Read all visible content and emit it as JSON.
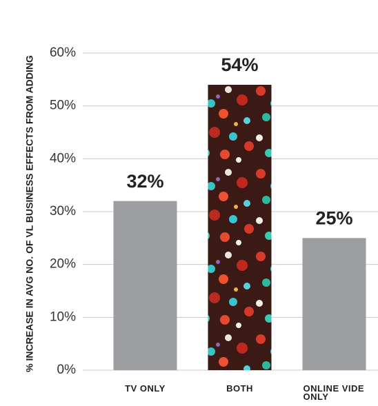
{
  "chart_data": {
    "type": "bar",
    "y_label": "% INCREASE IN AVG NO. OF VL BUSINESS EFFECTS FROM ADDING",
    "categories": [
      "TV ONLY",
      "BOTH",
      "ONLINE VIDE ONLY"
    ],
    "values": [
      32,
      54,
      25
    ],
    "value_labels": [
      "32%",
      "54%",
      "25%"
    ],
    "colors": [
      "#9d9ea2",
      "#3b1a16",
      "#9d9ea2"
    ],
    "textured": [
      false,
      true,
      false
    ],
    "ylim": [
      0,
      60
    ],
    "yticks": [
      {
        "value": 0,
        "label": "0%"
      },
      {
        "value": 10,
        "label": "10%"
      },
      {
        "value": 20,
        "label": "20%"
      },
      {
        "value": 30,
        "label": "30%"
      },
      {
        "value": 40,
        "label": "40%"
      },
      {
        "value": 50,
        "label": "50%"
      },
      {
        "value": 60,
        "label": "60%"
      }
    ],
    "grid": true
  }
}
